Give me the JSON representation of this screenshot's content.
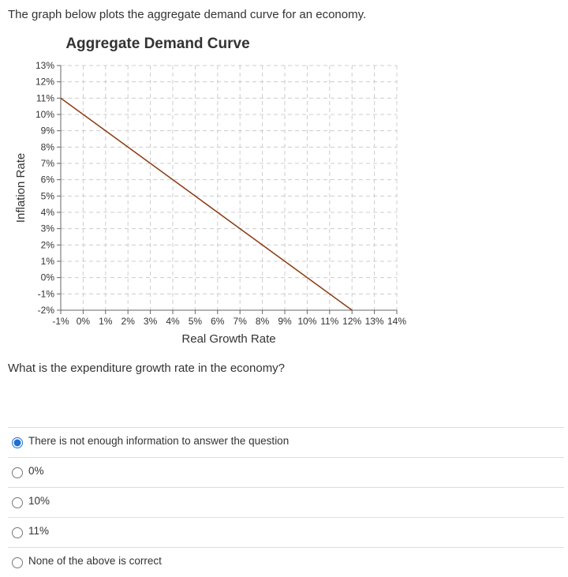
{
  "intro": "The graph below plots the aggregate demand curve for an economy.",
  "chart_data": {
    "type": "line",
    "title": "Aggregate Demand Curve",
    "x_label": "Real Growth Rate",
    "y_label": "Inflation Rate",
    "x": [
      -1,
      12
    ],
    "values": [
      11,
      -2
    ],
    "color": "#8b3a12",
    "xlim": [
      -1,
      14
    ],
    "ylim": [
      -2,
      13
    ],
    "grid": true,
    "xticks": [
      {
        "value": -1,
        "label": "-1%"
      },
      {
        "value": 0,
        "label": "0%"
      },
      {
        "value": 1,
        "label": "1%"
      },
      {
        "value": 2,
        "label": "2%"
      },
      {
        "value": 3,
        "label": "3%"
      },
      {
        "value": 4,
        "label": "4%"
      },
      {
        "value": 5,
        "label": "5%"
      },
      {
        "value": 6,
        "label": "6%"
      },
      {
        "value": 7,
        "label": "7%"
      },
      {
        "value": 8,
        "label": "8%"
      },
      {
        "value": 9,
        "label": "9%"
      },
      {
        "value": 10,
        "label": "10%"
      },
      {
        "value": 11,
        "label": "11%"
      },
      {
        "value": 12,
        "label": "12%"
      },
      {
        "value": 13,
        "label": "13%"
      },
      {
        "value": 14,
        "label": "14%"
      }
    ],
    "yticks": [
      {
        "value": -2,
        "label": "-2%"
      },
      {
        "value": -1,
        "label": "-1%"
      },
      {
        "value": 0,
        "label": "0%"
      },
      {
        "value": 1,
        "label": "1%"
      },
      {
        "value": 2,
        "label": "2%"
      },
      {
        "value": 3,
        "label": "3%"
      },
      {
        "value": 4,
        "label": "4%"
      },
      {
        "value": 5,
        "label": "5%"
      },
      {
        "value": 6,
        "label": "6%"
      },
      {
        "value": 7,
        "label": "7%"
      },
      {
        "value": 8,
        "label": "8%"
      },
      {
        "value": 9,
        "label": "9%"
      },
      {
        "value": 10,
        "label": "10%"
      },
      {
        "value": 11,
        "label": "11%"
      },
      {
        "value": 12,
        "label": "12%"
      },
      {
        "value": 13,
        "label": "13%"
      }
    ]
  },
  "question": "What is the expenditure growth rate in the economy?",
  "options": [
    "There is not enough information to answer the question",
    "0%",
    "10%",
    "11%",
    "None of the above is correct"
  ],
  "selected_option": 0
}
